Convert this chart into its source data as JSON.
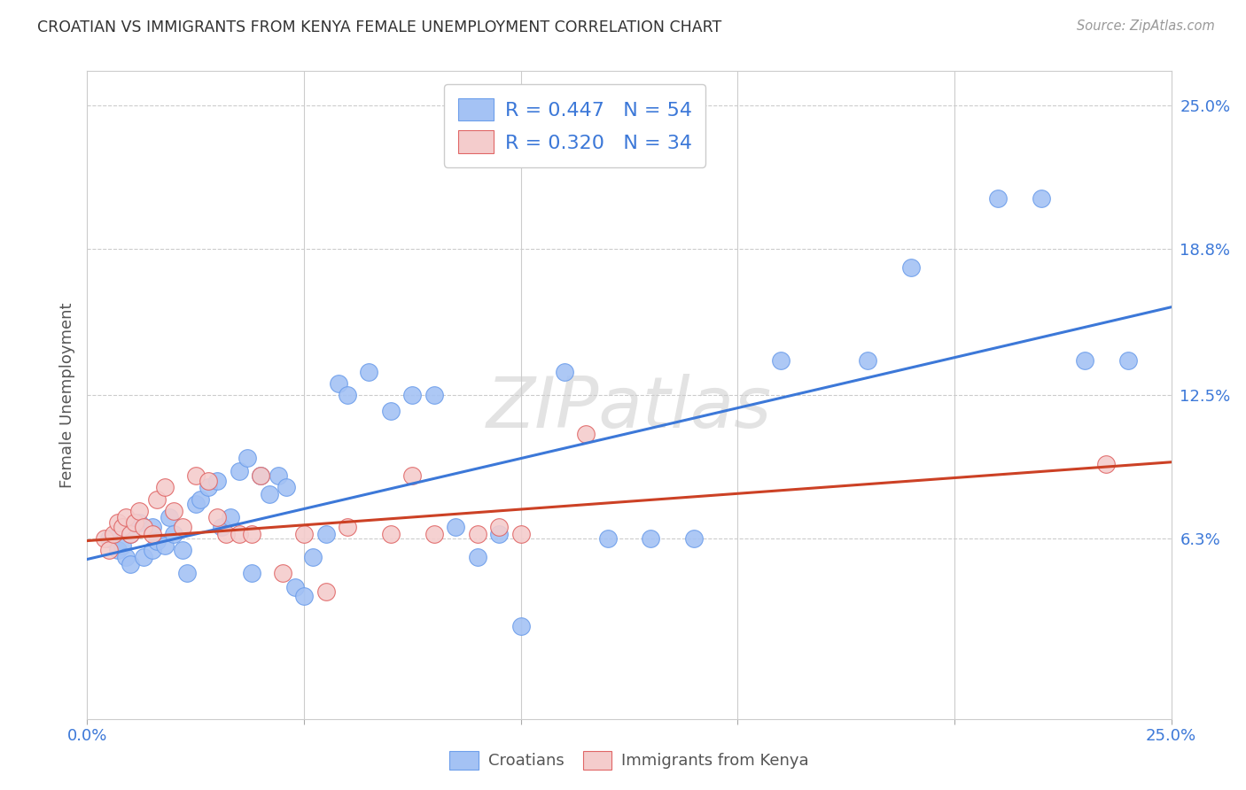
{
  "title": "CROATIAN VS IMMIGRANTS FROM KENYA FEMALE UNEMPLOYMENT CORRELATION CHART",
  "source": "Source: ZipAtlas.com",
  "ylabel": "Female Unemployment",
  "xlim": [
    0.0,
    0.25
  ],
  "ylim": [
    -0.015,
    0.265
  ],
  "ytick_labels_right": [
    "25.0%",
    "18.8%",
    "12.5%",
    "6.3%"
  ],
  "ytick_positions_right": [
    0.25,
    0.188,
    0.125,
    0.063
  ],
  "watermark": "ZIPatlas",
  "blue_color": "#a4c2f4",
  "pink_color": "#f4cccc",
  "blue_marker_edge": "#6d9eeb",
  "pink_marker_edge": "#e06666",
  "blue_line_color": "#3c78d8",
  "pink_line_color": "#cc4125",
  "legend_blue_label": "R = 0.447   N = 54",
  "legend_pink_label": "R = 0.320   N = 34",
  "legend_bottom_label1": "Croatians",
  "legend_bottom_label2": "Immigrants from Kenya",
  "blue_scatter_x": [
    0.005,
    0.007,
    0.008,
    0.009,
    0.01,
    0.01,
    0.012,
    0.013,
    0.015,
    0.015,
    0.016,
    0.018,
    0.019,
    0.02,
    0.022,
    0.023,
    0.025,
    0.026,
    0.028,
    0.03,
    0.031,
    0.033,
    0.035,
    0.037,
    0.038,
    0.04,
    0.042,
    0.044,
    0.046,
    0.048,
    0.05,
    0.052,
    0.055,
    0.058,
    0.06,
    0.065,
    0.07,
    0.075,
    0.08,
    0.085,
    0.09,
    0.095,
    0.1,
    0.11,
    0.12,
    0.13,
    0.14,
    0.16,
    0.18,
    0.19,
    0.21,
    0.22,
    0.23,
    0.24
  ],
  "blue_scatter_y": [
    0.063,
    0.058,
    0.06,
    0.055,
    0.052,
    0.065,
    0.07,
    0.055,
    0.058,
    0.068,
    0.062,
    0.06,
    0.072,
    0.065,
    0.058,
    0.048,
    0.078,
    0.08,
    0.085,
    0.088,
    0.068,
    0.072,
    0.092,
    0.098,
    0.048,
    0.09,
    0.082,
    0.09,
    0.085,
    0.042,
    0.038,
    0.055,
    0.065,
    0.13,
    0.125,
    0.135,
    0.118,
    0.125,
    0.125,
    0.068,
    0.055,
    0.065,
    0.025,
    0.135,
    0.063,
    0.063,
    0.063,
    0.14,
    0.14,
    0.18,
    0.21,
    0.21,
    0.14,
    0.14
  ],
  "pink_scatter_x": [
    0.004,
    0.005,
    0.006,
    0.007,
    0.008,
    0.009,
    0.01,
    0.011,
    0.012,
    0.013,
    0.015,
    0.016,
    0.018,
    0.02,
    0.022,
    0.025,
    0.028,
    0.03,
    0.032,
    0.035,
    0.038,
    0.04,
    0.045,
    0.05,
    0.055,
    0.06,
    0.07,
    0.075,
    0.08,
    0.09,
    0.095,
    0.1,
    0.115,
    0.235
  ],
  "pink_scatter_y": [
    0.063,
    0.058,
    0.065,
    0.07,
    0.068,
    0.072,
    0.065,
    0.07,
    0.075,
    0.068,
    0.065,
    0.08,
    0.085,
    0.075,
    0.068,
    0.09,
    0.088,
    0.072,
    0.065,
    0.065,
    0.065,
    0.09,
    0.048,
    0.065,
    0.04,
    0.068,
    0.065,
    0.09,
    0.065,
    0.065,
    0.068,
    0.065,
    0.108,
    0.095
  ],
  "blue_line_y_start": 0.054,
  "blue_line_y_end": 0.163,
  "pink_line_y_start": 0.062,
  "pink_line_y_end": 0.096
}
